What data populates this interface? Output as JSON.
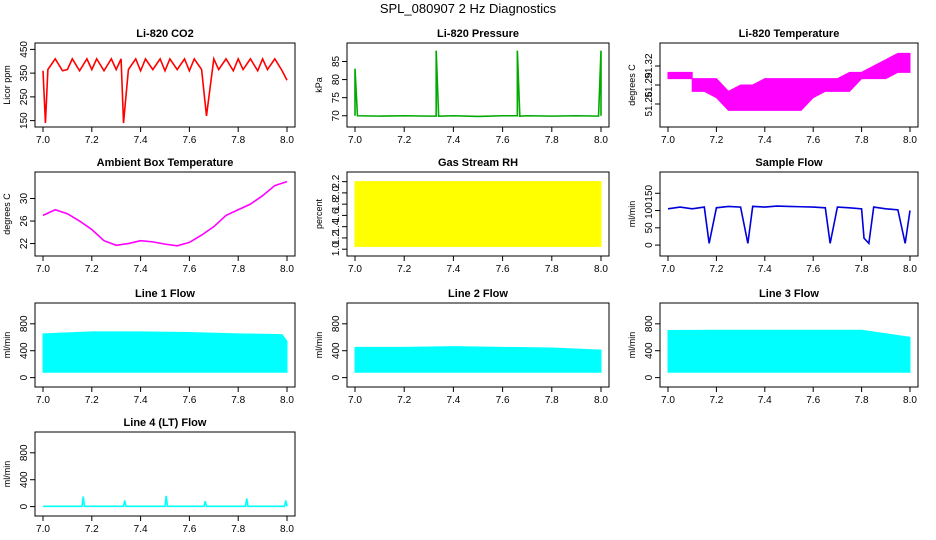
{
  "page_title": "SPL_080907  2 Hz Diagnostics",
  "chart_data": [
    {
      "type": "line",
      "title": "Li-820 CO2",
      "ylabel": "Licor ppm",
      "color": "#ff0000",
      "xlim": [
        7.0,
        8.0
      ],
      "ylim": [
        140,
        460
      ],
      "x_ticks": [
        "7.0",
        "7.2",
        "7.4",
        "7.6",
        "7.8",
        "8.0"
      ],
      "y_ticks": [
        "150",
        "250",
        "350",
        "450"
      ],
      "series": [
        {
          "x": [
            7.0,
            7.01,
            7.02,
            7.05,
            7.08,
            7.1,
            7.12,
            7.15,
            7.18,
            7.2,
            7.22,
            7.25,
            7.28,
            7.3,
            7.32,
            7.33,
            7.35,
            7.38,
            7.4,
            7.42,
            7.45,
            7.48,
            7.5,
            7.52,
            7.55,
            7.58,
            7.6,
            7.62,
            7.65,
            7.67,
            7.7,
            7.72,
            7.75,
            7.78,
            7.8,
            7.82,
            7.85,
            7.88,
            7.9,
            7.92,
            7.95,
            7.98,
            8.0
          ],
          "y": [
            360,
            140,
            365,
            410,
            360,
            365,
            410,
            360,
            410,
            365,
            410,
            360,
            410,
            365,
            410,
            140,
            365,
            410,
            360,
            410,
            365,
            410,
            360,
            410,
            365,
            410,
            360,
            410,
            365,
            170,
            410,
            365,
            410,
            360,
            410,
            365,
            410,
            360,
            410,
            365,
            410,
            360,
            320
          ]
        }
      ]
    },
    {
      "type": "line",
      "title": "Li-820 Pressure",
      "ylabel": "kPa",
      "color": "#00aa00",
      "xlim": [
        7.0,
        8.0
      ],
      "ylim": [
        68,
        89
      ],
      "x_ticks": [
        "7.0",
        "7.2",
        "7.4",
        "7.6",
        "7.8",
        "8.0"
      ],
      "y_ticks": [
        "70",
        "75",
        "80",
        "85"
      ],
      "series": [
        {
          "x": [
            7.0,
            7.0,
            7.01,
            7.1,
            7.2,
            7.3,
            7.33,
            7.33,
            7.34,
            7.4,
            7.5,
            7.6,
            7.66,
            7.66,
            7.67,
            7.7,
            7.8,
            7.9,
            7.99,
            8.0,
            8.0
          ],
          "y": [
            70,
            83,
            70,
            69.9,
            70,
            69.9,
            69.9,
            88,
            69.9,
            70,
            69.8,
            70,
            70,
            88,
            69.9,
            70,
            69.9,
            70,
            69.9,
            88,
            70
          ]
        }
      ]
    },
    {
      "type": "area",
      "title": "Li-820 Temperature",
      "ylabel": "degrees C",
      "color": "#ff00ff",
      "xlim": [
        7.0,
        8.0
      ],
      "ylim": [
        51.23,
        51.35
      ],
      "x_ticks": [
        "7.0",
        "7.2",
        "7.4",
        "7.6",
        "7.8",
        "8.0"
      ],
      "y_ticks": [
        "51.26",
        "51.29",
        "51.32"
      ],
      "series": [
        {
          "x": [
            7.0,
            7.1,
            7.1,
            7.15,
            7.2,
            7.25,
            7.3,
            7.35,
            7.4,
            7.45,
            7.5,
            7.55,
            7.6,
            7.65,
            7.7,
            7.75,
            7.8,
            7.85,
            7.9,
            7.95,
            8.0
          ],
          "low": [
            51.3,
            51.3,
            51.28,
            51.28,
            51.27,
            51.25,
            51.25,
            51.25,
            51.25,
            51.25,
            51.25,
            51.25,
            51.27,
            51.28,
            51.28,
            51.28,
            51.3,
            51.3,
            51.3,
            51.31,
            51.31
          ],
          "high": [
            51.31,
            51.31,
            51.3,
            51.3,
            51.3,
            51.28,
            51.29,
            51.29,
            51.3,
            51.3,
            51.3,
            51.3,
            51.3,
            51.3,
            51.3,
            51.31,
            51.31,
            51.32,
            51.33,
            51.34,
            51.34
          ]
        }
      ]
    },
    {
      "type": "line",
      "title": "Ambient Box Temperature",
      "ylabel": "degrees C",
      "color": "#ff00ff",
      "xlim": [
        7.0,
        8.0
      ],
      "ylim": [
        20.5,
        34
      ],
      "x_ticks": [
        "7.0",
        "7.2",
        "7.4",
        "7.6",
        "7.8",
        "8.0"
      ],
      "y_ticks": [
        "22",
        "26",
        "30"
      ],
      "series": [
        {
          "x": [
            7.0,
            7.05,
            7.1,
            7.15,
            7.2,
            7.25,
            7.3,
            7.35,
            7.4,
            7.45,
            7.5,
            7.55,
            7.6,
            7.65,
            7.7,
            7.75,
            7.8,
            7.85,
            7.9,
            7.95,
            8.0
          ],
          "y": [
            27,
            28,
            27.3,
            26,
            24.5,
            22.5,
            21.7,
            22,
            22.5,
            22.3,
            21.9,
            21.6,
            22.2,
            23.5,
            25,
            27,
            28,
            29,
            30.5,
            32.3,
            33
          ]
        }
      ]
    },
    {
      "type": "area",
      "title": "Gas Stream RH",
      "ylabel": "percent",
      "color": "#ffff00",
      "xlim": [
        7.0,
        8.0
      ],
      "ylim": [
        0.95,
        2.3
      ],
      "x_ticks": [
        "7.0",
        "7.2",
        "7.4",
        "7.6",
        "7.8",
        "8.0"
      ],
      "y_ticks": [
        "1.0",
        "1.2",
        "1.4",
        "1.6",
        "1.8",
        "2.0",
        "2.2"
      ],
      "series": [
        {
          "x": [
            7.0,
            8.0
          ],
          "low": [
            1.05,
            1.05
          ],
          "high": [
            2.2,
            2.2
          ]
        }
      ]
    },
    {
      "type": "line",
      "title": "Sample Flow",
      "ylabel": "ml/min",
      "color": "#0000dd",
      "xlim": [
        7.0,
        8.0
      ],
      "ylim": [
        -20,
        200
      ],
      "x_ticks": [
        "7.0",
        "7.2",
        "7.4",
        "7.6",
        "7.8",
        "8.0"
      ],
      "y_ticks": [
        "0",
        "50",
        "100",
        "150"
      ],
      "series": [
        {
          "x": [
            7.0,
            7.05,
            7.1,
            7.15,
            7.17,
            7.2,
            7.25,
            7.3,
            7.33,
            7.35,
            7.4,
            7.45,
            7.5,
            7.55,
            7.6,
            7.65,
            7.67,
            7.7,
            7.75,
            7.8,
            7.81,
            7.83,
            7.85,
            7.9,
            7.95,
            7.98,
            8.0
          ],
          "y": [
            105,
            110,
            105,
            110,
            5,
            108,
            112,
            110,
            5,
            112,
            110,
            113,
            112,
            111,
            110,
            108,
            5,
            110,
            108,
            105,
            20,
            5,
            110,
            105,
            102,
            5,
            100
          ]
        }
      ]
    },
    {
      "type": "area",
      "title": "Line 1 Flow",
      "ylabel": "ml/min",
      "color": "#00ffff",
      "xlim": [
        7.0,
        8.0
      ],
      "ylim": [
        -80,
        1050
      ],
      "x_ticks": [
        "7.0",
        "7.2",
        "7.4",
        "7.6",
        "7.8",
        "8.0"
      ],
      "y_ticks": [
        "0",
        "400",
        "800"
      ],
      "series": [
        {
          "x": [
            7.0,
            7.2,
            7.4,
            7.6,
            7.8,
            7.98,
            8.0
          ],
          "low": [
            80,
            80,
            80,
            80,
            80,
            80,
            80
          ],
          "high": [
            650,
            680,
            680,
            670,
            650,
            640,
            540
          ]
        }
      ]
    },
    {
      "type": "area",
      "title": "Line 2 Flow",
      "ylabel": "ml/min",
      "color": "#00ffff",
      "xlim": [
        7.0,
        8.0
      ],
      "ylim": [
        -80,
        1050
      ],
      "x_ticks": [
        "7.0",
        "7.2",
        "7.4",
        "7.6",
        "7.8",
        "8.0"
      ],
      "y_ticks": [
        "0",
        "400",
        "800"
      ],
      "series": [
        {
          "x": [
            7.0,
            7.2,
            7.4,
            7.6,
            7.8,
            8.0
          ],
          "low": [
            80,
            80,
            80,
            80,
            80,
            80
          ],
          "high": [
            450,
            450,
            460,
            450,
            440,
            410
          ]
        }
      ]
    },
    {
      "type": "area",
      "title": "Line 3 Flow",
      "ylabel": "ml/min",
      "color": "#00ffff",
      "xlim": [
        7.0,
        8.0
      ],
      "ylim": [
        -80,
        1050
      ],
      "x_ticks": [
        "7.0",
        "7.2",
        "7.4",
        "7.6",
        "7.8",
        "8.0"
      ],
      "y_ticks": [
        "0",
        "400",
        "800"
      ],
      "series": [
        {
          "x": [
            7.0,
            7.2,
            7.4,
            7.6,
            7.8,
            8.0
          ],
          "low": [
            80,
            80,
            80,
            80,
            80,
            80
          ],
          "high": [
            700,
            705,
            705,
            705,
            705,
            600
          ]
        }
      ]
    },
    {
      "type": "line",
      "title": "Line 4 (LT) Flow",
      "ylabel": "ml/min",
      "color": "#00ffff",
      "xlim": [
        7.0,
        8.0
      ],
      "ylim": [
        -80,
        1050
      ],
      "x_ticks": [
        "7.0",
        "7.2",
        "7.4",
        "7.6",
        "7.8",
        "8.0"
      ],
      "y_ticks": [
        "0",
        "400",
        "800"
      ],
      "series": [
        {
          "x": [
            7.0,
            7.16,
            7.165,
            7.17,
            7.33,
            7.335,
            7.34,
            7.5,
            7.505,
            7.51,
            7.66,
            7.665,
            7.67,
            7.83,
            7.835,
            7.84,
            7.99,
            7.995,
            8.0
          ],
          "y": [
            5,
            5,
            150,
            5,
            5,
            90,
            5,
            5,
            160,
            5,
            5,
            80,
            5,
            5,
            120,
            5,
            5,
            90,
            5
          ]
        }
      ]
    }
  ]
}
